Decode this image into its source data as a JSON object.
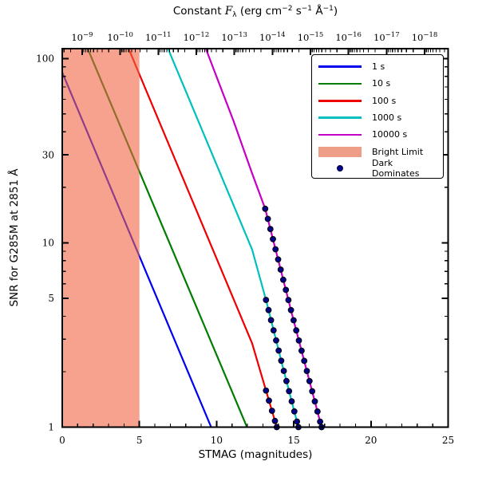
{
  "chart_data": {
    "type": "line",
    "title_text": "Constant Fλ (erg cm−2 s−1 Å−1)",
    "title_parts": [
      {
        "text": "Constant "
      },
      {
        "text": "F",
        "style": "it"
      },
      {
        "text": "λ",
        "style": "sub"
      },
      {
        "text": " (erg cm"
      },
      {
        "text": "−2",
        "style": "sup"
      },
      {
        "text": " s"
      },
      {
        "text": "−1",
        "style": "sup"
      },
      {
        "text": " Å"
      },
      {
        "text": "−1",
        "style": "sup"
      },
      {
        "text": ")"
      }
    ],
    "xlabel": "STMAG (magnitudes)",
    "ylabel": "SNR for G285M at 2851 Å",
    "xlim": [
      0,
      25
    ],
    "ylim": [
      1,
      113
    ],
    "yscale": "log",
    "grid": false,
    "x_major_ticks": [
      0,
      5,
      10,
      15,
      20,
      25
    ],
    "x_minor_step": 1,
    "y_major_ticks": [
      1,
      5,
      10,
      30,
      100
    ],
    "y_minor_ticks": [
      2,
      3,
      4,
      6,
      7,
      8,
      9,
      20,
      40,
      50,
      60,
      70,
      80,
      90
    ],
    "top_axis": {
      "mantissa": "10",
      "exponents": [
        "−9",
        "−10",
        "−11",
        "−12",
        "−13",
        "−14",
        "−15",
        "−16",
        "−17",
        "−18"
      ],
      "first_tick_mag": 1.29,
      "mag_per_decade": 2.465
    },
    "bright_limit": {
      "label": "Bright Limit",
      "x_range": [
        0,
        5
      ],
      "fill": "rgba(240,100,66,0.6)",
      "legend_fill": "#EE9E86"
    },
    "dark_marker": {
      "label": "Dark Dominates",
      "fill": "#00008B",
      "edge": "#000000",
      "radius": 3.4,
      "log_spacing": 0.055
    },
    "series": [
      {
        "label": "1 s",
        "color": "#0000EE",
        "points": [
          [
            0,
            84
          ],
          [
            9.65,
            1
          ]
        ]
      },
      {
        "label": "10 s",
        "color": "#007C00",
        "points": [
          [
            1.65,
            113
          ],
          [
            11.97,
            1
          ]
        ]
      },
      {
        "label": "100 s",
        "color": "#EE0000",
        "points": [
          [
            4.3,
            113
          ],
          [
            12.3,
            2.85
          ],
          [
            13.2,
            1.58
          ],
          [
            13.9,
            1
          ]
        ],
        "dark_from": 13.2
      },
      {
        "label": "1000 s",
        "color": "#00BFBF",
        "points": [
          [
            6.85,
            113
          ],
          [
            12.3,
            9.2
          ],
          [
            13.2,
            4.9
          ],
          [
            14.3,
            2.1
          ],
          [
            15.3,
            1
          ]
        ],
        "dark_from": 13.2
      },
      {
        "label": "10000 s",
        "color": "#C400C4",
        "points": [
          [
            9.3,
            113
          ],
          [
            11.1,
            45.7
          ],
          [
            12.3,
            23.8
          ],
          [
            13.15,
            15.3
          ],
          [
            14.94,
            3.94
          ],
          [
            16.8,
            1
          ]
        ],
        "dark_from": 13.15
      }
    ],
    "legend_position": "upper right"
  }
}
